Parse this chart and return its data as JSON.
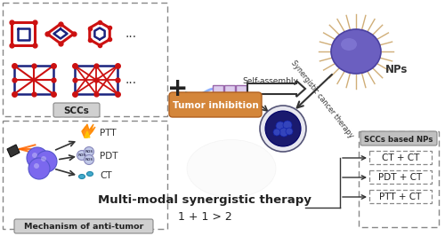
{
  "bg_color": "#ffffff",
  "sccs_label": "SCCs",
  "mechanism_label": "Mechanism of anti-tumor",
  "np_label": "NPs",
  "self_assembly_label": "Self-assembly",
  "tumor_inhibition_label": "Tumor inhibition",
  "synergistic_label": "Synergistic cancer therapy",
  "sccs_np_label": "SCCs based NPs",
  "multimodal_label": "Multi-modal synergistic therapy",
  "equation_label": "1 + 1 > 2",
  "ptt_label": "PTT",
  "pdt_label": "PDT",
  "ct_label": "CT",
  "combos": [
    "CT + CT",
    "PDT + CT",
    "PTT + CT"
  ],
  "plus_sign": "+",
  "dashed_box_color": "#888888",
  "tumor_inhibition_bg": "#d4863a",
  "sccs_based_nps_bg": "#c0c0c0",
  "figw": 5.0,
  "figh": 2.66,
  "dpi": 100
}
